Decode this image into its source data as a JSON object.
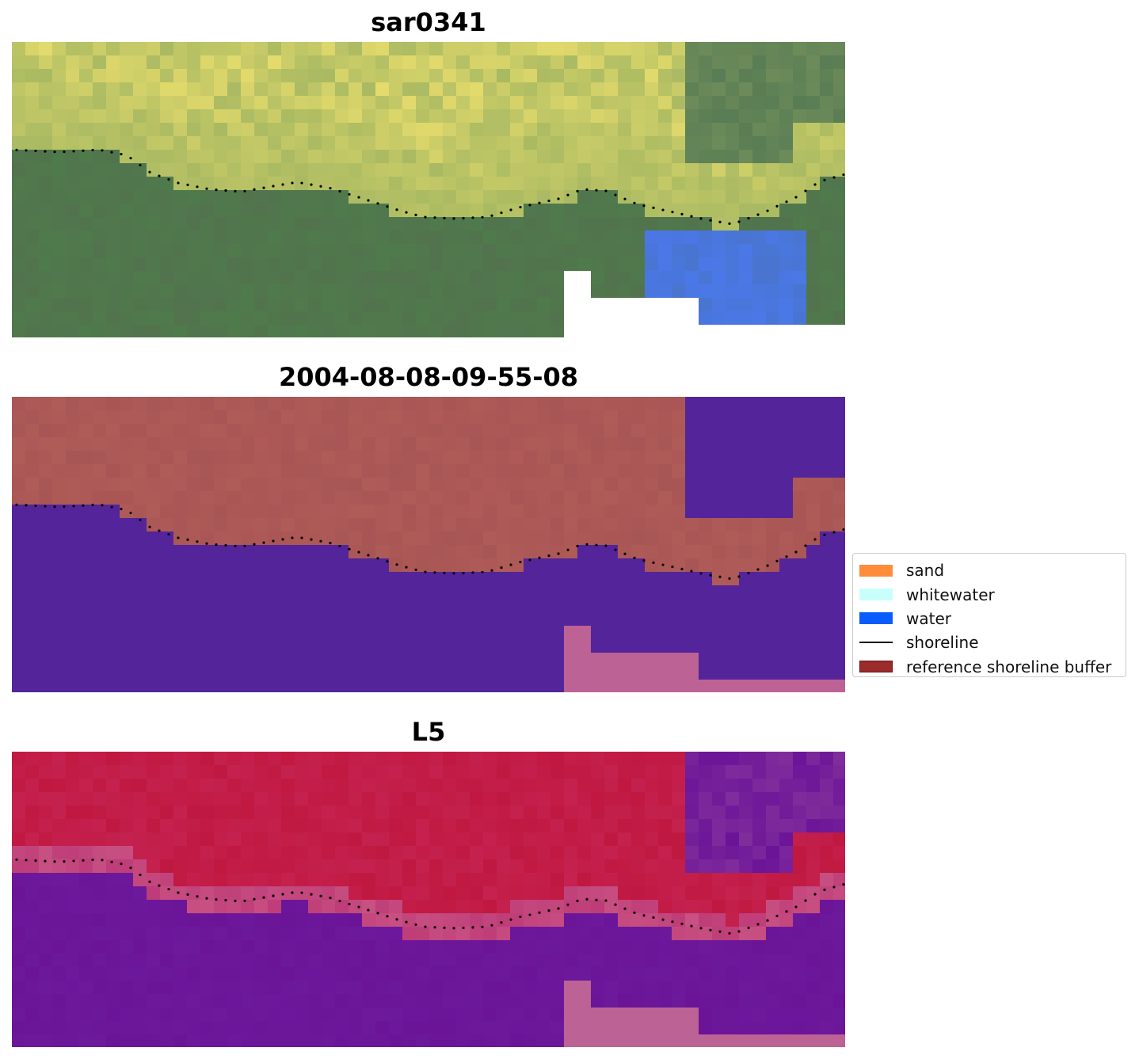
{
  "panels": [
    {
      "title": "sar0341"
    },
    {
      "title": "2004-08-08-09-55-08"
    },
    {
      "title": "L5"
    }
  ],
  "legend": {
    "items": [
      {
        "label": "sand",
        "color": "#ff8c3a",
        "kind": "patch"
      },
      {
        "label": "whitewater",
        "color": "#c8fffa",
        "kind": "patch"
      },
      {
        "label": "water",
        "color": "#0a5cff",
        "kind": "patch"
      },
      {
        "label": "shoreline",
        "color": "#000000",
        "kind": "line"
      },
      {
        "label": "reference shoreline buffer",
        "color": "#9b2c2c",
        "kind": "patch"
      }
    ]
  },
  "colors": {
    "rgb_land": "#d8d46a",
    "rgb_water": "#4f7a4c",
    "rgb_lagoon": "#4a78e8",
    "class_land": "#a85555",
    "class_water": "#54249a",
    "nodata": "#bd6294",
    "index_land": "#c01840",
    "index_water": "#6b1498"
  }
}
